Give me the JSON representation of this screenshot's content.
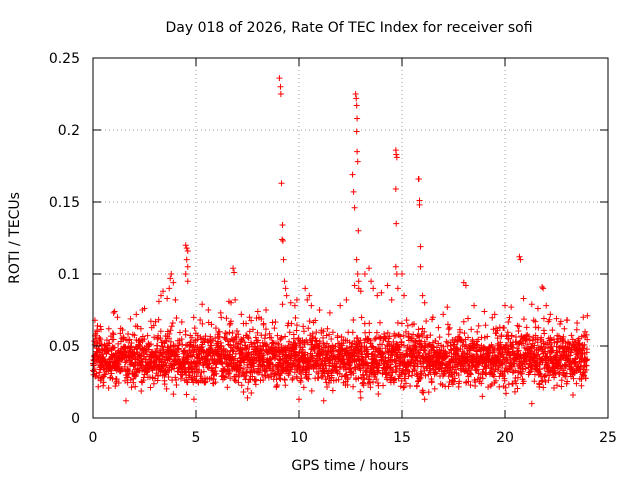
{
  "chart_data": {
    "type": "scatter",
    "title": "Day 018 of 2026, Rate Of TEC Index for receiver sofi",
    "xlabel": "GPS time / hours",
    "ylabel": "ROTI / TECUs",
    "xlim": [
      0,
      25
    ],
    "ylim": [
      0,
      0.25
    ],
    "xticks": [
      0,
      5,
      10,
      15,
      20,
      25
    ],
    "xtick_labels": [
      "0",
      "5",
      "10",
      "15",
      "20",
      "25"
    ],
    "yticks": [
      0,
      0.05,
      0.1,
      0.15,
      0.2,
      0.25
    ],
    "ytick_labels": [
      "0",
      "0.05",
      "0.1",
      "0.15",
      "0.2",
      "0.25"
    ],
    "grid": true,
    "marker": "+",
    "color": "#ff0000",
    "data_x_range": [
      0,
      24
    ],
    "background_band": {
      "low": 0.015,
      "high": 0.065,
      "typical": 0.04
    },
    "points": [
      [
        0.1,
        0.057
      ],
      [
        0.2,
        0.061
      ],
      [
        0.3,
        0.052
      ],
      [
        1.0,
        0.073
      ],
      [
        1.05,
        0.074
      ],
      [
        2.1,
        0.072
      ],
      [
        2.4,
        0.075
      ],
      [
        2.5,
        0.076
      ],
      [
        3.2,
        0.081
      ],
      [
        3.3,
        0.085
      ],
      [
        3.4,
        0.088
      ],
      [
        3.6,
        0.083
      ],
      [
        3.7,
        0.09
      ],
      [
        3.75,
        0.097
      ],
      [
        3.8,
        0.1
      ],
      [
        3.9,
        0.094
      ],
      [
        4.0,
        0.082
      ],
      [
        4.5,
        0.12
      ],
      [
        4.55,
        0.118
      ],
      [
        4.6,
        0.116
      ],
      [
        4.55,
        0.11
      ],
      [
        4.6,
        0.105
      ],
      [
        4.5,
        0.1
      ],
      [
        4.6,
        0.095
      ],
      [
        5.3,
        0.079
      ],
      [
        5.6,
        0.075
      ],
      [
        6.2,
        0.073
      ],
      [
        6.6,
        0.081
      ],
      [
        6.7,
        0.08
      ],
      [
        6.8,
        0.104
      ],
      [
        6.85,
        0.101
      ],
      [
        6.9,
        0.082
      ],
      [
        7.2,
        0.072
      ],
      [
        7.6,
        0.07
      ],
      [
        8.0,
        0.074
      ],
      [
        8.4,
        0.075
      ],
      [
        9.05,
        0.236
      ],
      [
        9.1,
        0.23
      ],
      [
        9.12,
        0.225
      ],
      [
        9.15,
        0.163
      ],
      [
        9.2,
        0.134
      ],
      [
        9.22,
        0.123
      ],
      [
        9.18,
        0.124
      ],
      [
        9.25,
        0.11
      ],
      [
        9.3,
        0.095
      ],
      [
        9.35,
        0.09
      ],
      [
        9.2,
        0.079
      ],
      [
        9.4,
        0.085
      ],
      [
        9.6,
        0.08
      ],
      [
        9.8,
        0.078
      ],
      [
        9.9,
        0.082
      ],
      [
        10.3,
        0.09
      ],
      [
        10.4,
        0.082
      ],
      [
        10.5,
        0.085
      ],
      [
        10.6,
        0.078
      ],
      [
        11.0,
        0.075
      ],
      [
        11.5,
        0.073
      ],
      [
        12.0,
        0.078
      ],
      [
        12.3,
        0.082
      ],
      [
        12.6,
        0.169
      ],
      [
        12.65,
        0.157
      ],
      [
        12.7,
        0.146
      ],
      [
        12.75,
        0.225
      ],
      [
        12.78,
        0.222
      ],
      [
        12.8,
        0.217
      ],
      [
        12.82,
        0.208
      ],
      [
        12.8,
        0.199
      ],
      [
        12.82,
        0.185
      ],
      [
        12.85,
        0.178
      ],
      [
        12.88,
        0.13
      ],
      [
        12.8,
        0.11
      ],
      [
        12.85,
        0.1
      ],
      [
        12.9,
        0.095
      ],
      [
        12.7,
        0.092
      ],
      [
        12.9,
        0.09
      ],
      [
        13.0,
        0.088
      ],
      [
        13.2,
        0.1
      ],
      [
        13.4,
        0.104
      ],
      [
        13.5,
        0.095
      ],
      [
        13.6,
        0.09
      ],
      [
        13.8,
        0.085
      ],
      [
        14.0,
        0.087
      ],
      [
        14.3,
        0.092
      ],
      [
        14.5,
        0.082
      ],
      [
        14.7,
        0.186
      ],
      [
        14.72,
        0.183
      ],
      [
        14.75,
        0.181
      ],
      [
        14.7,
        0.159
      ],
      [
        14.72,
        0.135
      ],
      [
        14.7,
        0.105
      ],
      [
        14.75,
        0.1
      ],
      [
        14.8,
        0.09
      ],
      [
        15.0,
        0.1
      ],
      [
        15.1,
        0.085
      ],
      [
        15.8,
        0.166
      ],
      [
        15.82,
        0.166
      ],
      [
        15.85,
        0.151
      ],
      [
        15.85,
        0.148
      ],
      [
        15.9,
        0.119
      ],
      [
        15.9,
        0.105
      ],
      [
        16.0,
        0.085
      ],
      [
        16.1,
        0.08
      ],
      [
        16.5,
        0.07
      ],
      [
        17.0,
        0.072
      ],
      [
        17.2,
        0.077
      ],
      [
        18.0,
        0.094
      ],
      [
        18.1,
        0.092
      ],
      [
        18.5,
        0.078
      ],
      [
        19.0,
        0.074
      ],
      [
        19.5,
        0.072
      ],
      [
        20.0,
        0.078
      ],
      [
        20.3,
        0.077
      ],
      [
        20.7,
        0.112
      ],
      [
        20.75,
        0.11
      ],
      [
        20.9,
        0.083
      ],
      [
        21.3,
        0.079
      ],
      [
        21.6,
        0.076
      ],
      [
        21.8,
        0.091
      ],
      [
        21.85,
        0.09
      ],
      [
        22.0,
        0.078
      ],
      [
        22.2,
        0.072
      ],
      [
        22.5,
        0.069
      ],
      [
        23.0,
        0.068
      ],
      [
        23.5,
        0.066
      ],
      [
        23.8,
        0.07
      ],
      [
        24.0,
        0.071
      ],
      [
        1.6,
        0.012
      ],
      [
        4.9,
        0.013
      ],
      [
        7.5,
        0.014
      ],
      [
        10.0,
        0.013
      ],
      [
        11.2,
        0.012
      ],
      [
        16.1,
        0.013
      ],
      [
        16.3,
        0.018
      ],
      [
        21.3,
        0.01
      ],
      [
        23.3,
        0.016
      ],
      [
        18.9,
        0.015
      ],
      [
        13.0,
        0.014
      ]
    ]
  }
}
